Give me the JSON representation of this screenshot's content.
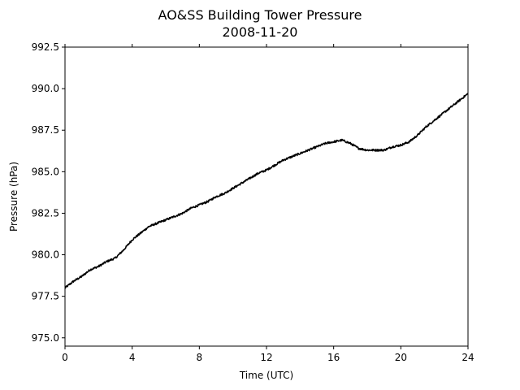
{
  "chart_data": {
    "type": "line",
    "title": "AO&SS Building Tower Pressure",
    "subtitle": "2008-11-20",
    "xlabel": "Time (UTC)",
    "ylabel": "Pressure (hPa)",
    "xlim": [
      0,
      24
    ],
    "ylim": [
      974.5,
      992.5
    ],
    "xticks": [
      "0",
      "4",
      "8",
      "12",
      "16",
      "20",
      "24"
    ],
    "yticks": [
      "975.0",
      "977.5",
      "980.0",
      "982.5",
      "985.0",
      "987.5",
      "990.0",
      "992.5"
    ],
    "grid": false,
    "line_color": "#000000",
    "series": [
      {
        "x": [
          0,
          0.5,
          1,
          1.5,
          2,
          2.5,
          3,
          3.5,
          4,
          4.5,
          5,
          5.5,
          6,
          6.5,
          7,
          7.5,
          8,
          8.5,
          9,
          9.5,
          10,
          10.5,
          11,
          11.5,
          12,
          12.5,
          13,
          13.5,
          14,
          14.5,
          15,
          15.5,
          16,
          16.5,
          17,
          17.5,
          18,
          18.5,
          19,
          19.5,
          20,
          20.5,
          21,
          21.5,
          22,
          22.5,
          23,
          23.5,
          24
        ],
        "values": [
          978.0,
          978.4,
          978.7,
          979.1,
          979.3,
          979.6,
          979.8,
          980.3,
          980.9,
          981.3,
          981.7,
          981.9,
          982.1,
          982.3,
          982.5,
          982.8,
          983.0,
          983.2,
          983.5,
          983.7,
          984.0,
          984.3,
          984.6,
          984.9,
          985.1,
          985.4,
          985.7,
          985.9,
          986.1,
          986.3,
          986.5,
          986.7,
          986.8,
          986.9,
          986.7,
          986.4,
          986.3,
          986.3,
          986.3,
          986.5,
          986.6,
          986.8,
          987.2,
          987.7,
          988.1,
          988.5,
          988.9,
          989.3,
          989.7
        ]
      }
    ]
  }
}
